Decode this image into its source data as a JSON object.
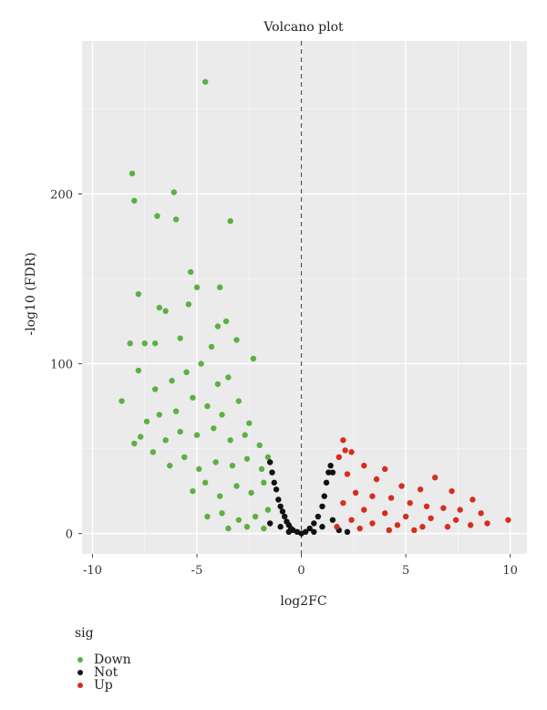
{
  "chart_data": {
    "type": "scatter",
    "title": "Volcano plot",
    "xlabel": "log2FC",
    "ylabel": "-log10 (FDR)",
    "xlim": [
      -10.5,
      10.8
    ],
    "ylim": [
      -12,
      290
    ],
    "x_ticks": [
      -10,
      -5,
      0,
      5,
      10
    ],
    "y_ticks": [
      0,
      100,
      200
    ],
    "grid": true,
    "vertical_reference_line": 0,
    "legend": {
      "title": "sig",
      "placement": "bottom-left"
    },
    "series": [
      {
        "name": "Down",
        "color": "#5cb043",
        "points": [
          [
            -4.6,
            266
          ],
          [
            -8.1,
            212
          ],
          [
            -6.1,
            201
          ],
          [
            -8.0,
            196
          ],
          [
            -6.9,
            187
          ],
          [
            -6.0,
            185
          ],
          [
            -3.4,
            184
          ],
          [
            -5.3,
            154
          ],
          [
            -5.0,
            145
          ],
          [
            -3.9,
            145
          ],
          [
            -7.8,
            141
          ],
          [
            -6.5,
            131
          ],
          [
            -6.8,
            133
          ],
          [
            -5.4,
            135
          ],
          [
            -4.0,
            122
          ],
          [
            -3.6,
            125
          ],
          [
            -3.1,
            114
          ],
          [
            -8.2,
            112
          ],
          [
            -7.0,
            112
          ],
          [
            -7.5,
            112
          ],
          [
            -5.8,
            115
          ],
          [
            -4.3,
            110
          ],
          [
            -2.3,
            103
          ],
          [
            -8.6,
            78
          ],
          [
            -7.8,
            96
          ],
          [
            -7.0,
            85
          ],
          [
            -6.2,
            90
          ],
          [
            -5.5,
            95
          ],
          [
            -4.8,
            100
          ],
          [
            -4.0,
            88
          ],
          [
            -3.5,
            92
          ],
          [
            -7.4,
            66
          ],
          [
            -6.8,
            70
          ],
          [
            -6.0,
            72
          ],
          [
            -5.2,
            80
          ],
          [
            -4.5,
            75
          ],
          [
            -3.8,
            70
          ],
          [
            -3.0,
            78
          ],
          [
            -2.5,
            65
          ],
          [
            -7.7,
            57
          ],
          [
            -8.0,
            53
          ],
          [
            -7.1,
            48
          ],
          [
            -6.5,
            55
          ],
          [
            -5.8,
            60
          ],
          [
            -5.0,
            58
          ],
          [
            -4.2,
            62
          ],
          [
            -3.4,
            55
          ],
          [
            -2.7,
            58
          ],
          [
            -2.0,
            52
          ],
          [
            -6.3,
            40
          ],
          [
            -5.6,
            45
          ],
          [
            -4.9,
            38
          ],
          [
            -4.1,
            42
          ],
          [
            -3.3,
            40
          ],
          [
            -2.6,
            44
          ],
          [
            -1.9,
            38
          ],
          [
            -1.6,
            45
          ],
          [
            -5.2,
            25
          ],
          [
            -4.6,
            30
          ],
          [
            -3.9,
            22
          ],
          [
            -3.1,
            28
          ],
          [
            -2.4,
            24
          ],
          [
            -1.8,
            30
          ],
          [
            -4.5,
            10
          ],
          [
            -3.8,
            12
          ],
          [
            -3.0,
            8
          ],
          [
            -2.2,
            10
          ],
          [
            -1.6,
            14
          ],
          [
            -3.5,
            3
          ],
          [
            -2.6,
            4
          ],
          [
            -1.8,
            3
          ]
        ]
      },
      {
        "name": "Not",
        "color": "#111111",
        "points": [
          [
            -1.5,
            42
          ],
          [
            -1.4,
            36
          ],
          [
            -1.3,
            30
          ],
          [
            -1.2,
            26
          ],
          [
            -1.1,
            20
          ],
          [
            -1.0,
            16
          ],
          [
            -0.9,
            13
          ],
          [
            -0.8,
            10
          ],
          [
            -0.7,
            7
          ],
          [
            -0.6,
            5
          ],
          [
            -0.5,
            3
          ],
          [
            -0.4,
            2
          ],
          [
            -0.2,
            1
          ],
          [
            0,
            0
          ],
          [
            0.2,
            1
          ],
          [
            0.4,
            3
          ],
          [
            0.6,
            6
          ],
          [
            0.8,
            10
          ],
          [
            1.0,
            16
          ],
          [
            1.1,
            22
          ],
          [
            1.2,
            30
          ],
          [
            1.3,
            36
          ],
          [
            1.4,
            40
          ],
          [
            1.5,
            36
          ],
          [
            1.5,
            8
          ],
          [
            1.8,
            2
          ],
          [
            2.2,
            1
          ],
          [
            -1.5,
            6
          ],
          [
            -1.0,
            4
          ],
          [
            -0.6,
            1
          ],
          [
            0.6,
            1
          ],
          [
            1.0,
            4
          ]
        ]
      },
      {
        "name": "Up",
        "color": "#d42e1e",
        "points": [
          [
            2.0,
            55
          ],
          [
            2.1,
            49
          ],
          [
            2.4,
            48
          ],
          [
            1.8,
            45
          ],
          [
            3.0,
            40
          ],
          [
            4.0,
            38
          ],
          [
            6.4,
            33
          ],
          [
            2.2,
            35
          ],
          [
            3.6,
            32
          ],
          [
            4.8,
            28
          ],
          [
            5.7,
            26
          ],
          [
            7.2,
            25
          ],
          [
            8.2,
            20
          ],
          [
            2.6,
            24
          ],
          [
            3.4,
            22
          ],
          [
            4.3,
            21
          ],
          [
            5.2,
            18
          ],
          [
            6.0,
            16
          ],
          [
            6.8,
            15
          ],
          [
            7.6,
            14
          ],
          [
            8.6,
            12
          ],
          [
            2.0,
            18
          ],
          [
            3.0,
            14
          ],
          [
            4.0,
            12
          ],
          [
            5.0,
            10
          ],
          [
            6.2,
            9
          ],
          [
            7.4,
            8
          ],
          [
            9.9,
            8
          ],
          [
            8.9,
            6
          ],
          [
            2.4,
            8
          ],
          [
            3.4,
            6
          ],
          [
            4.6,
            5
          ],
          [
            5.8,
            4
          ],
          [
            7.0,
            4
          ],
          [
            8.1,
            5
          ],
          [
            1.7,
            4
          ],
          [
            2.8,
            3
          ],
          [
            4.2,
            2
          ],
          [
            5.4,
            2
          ]
        ]
      }
    ]
  }
}
